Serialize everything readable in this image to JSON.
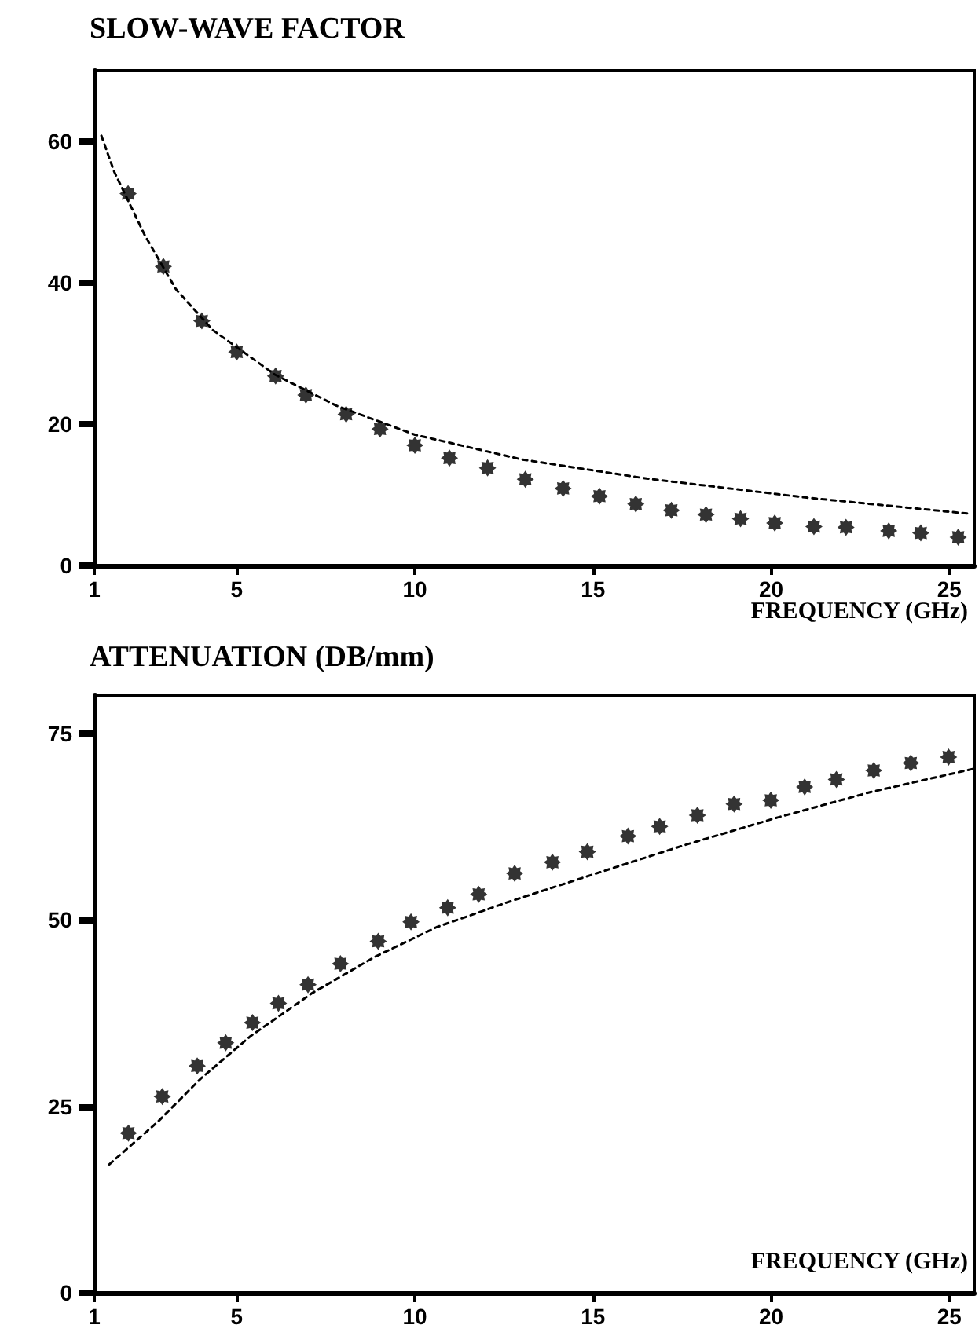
{
  "chart_data": [
    {
      "type": "scatter",
      "title": "SLOW-WAVE FACTOR",
      "xlabel": "FREQUENCY (GHz)",
      "xlim": [
        1,
        25.7
      ],
      "xticks": [
        1,
        5,
        10,
        15,
        20,
        25
      ],
      "ylim": [
        0,
        70
      ],
      "yticks": [
        0,
        20,
        40,
        60
      ],
      "grid": false,
      "series": [
        {
          "color": "#000000",
          "marker": "star",
          "x": [
            1.95,
            2.94,
            4.02,
            5.0,
            6.09,
            6.94,
            8.07,
            9.02,
            10.0,
            10.97,
            12.04,
            13.1,
            14.16,
            15.18,
            16.2,
            17.2,
            18.17,
            19.14,
            20.1,
            21.2,
            22.1,
            23.3,
            24.2,
            25.25
          ],
          "values": [
            52.6,
            42.3,
            34.6,
            30.2,
            26.8,
            24.1,
            21.4,
            19.3,
            17.0,
            15.2,
            13.8,
            12.2,
            10.9,
            9.8,
            8.7,
            7.8,
            7.2,
            6.6,
            6.0,
            5.5,
            5.4,
            4.9,
            4.6,
            4.0
          ]
        },
        {
          "type": "line",
          "color": "#000000",
          "line_style": "dashed",
          "x": [
            1.2,
            1.56,
            2.42,
            3.29,
            4.33,
            6.07,
            7.8,
            10.0,
            13.0,
            16.5,
            21.0,
            25.6
          ],
          "values": [
            60.8,
            55.7,
            46.7,
            39.1,
            33.3,
            27.0,
            22.6,
            18.5,
            15.0,
            12.3,
            9.6,
            7.3
          ]
        }
      ]
    },
    {
      "type": "scatter",
      "title": "ATTENUATION (DB/mm)",
      "xlabel": "FREQUENCY (GHz)",
      "xlim": [
        1,
        25.7
      ],
      "xticks": [
        1,
        5,
        10,
        15,
        20,
        25
      ],
      "ylim": [
        0,
        80
      ],
      "yticks": [
        0,
        25,
        50,
        75
      ],
      "grid": false,
      "series": [
        {
          "color": "#000000",
          "marker": "star",
          "x": [
            1.96,
            2.91,
            3.89,
            4.69,
            5.44,
            6.17,
            7.0,
            7.91,
            8.97,
            9.89,
            10.92,
            11.79,
            12.8,
            13.86,
            14.84,
            15.98,
            16.87,
            17.93,
            18.96,
            19.99,
            20.94,
            21.83,
            22.88,
            23.92,
            24.98
          ],
          "values": [
            21.4,
            26.3,
            30.4,
            33.5,
            36.2,
            38.8,
            41.3,
            44.1,
            47.1,
            49.7,
            51.6,
            53.4,
            56.2,
            57.7,
            59.1,
            61.2,
            62.5,
            64.0,
            65.5,
            66.0,
            67.8,
            68.8,
            70.0,
            71.0,
            71.8
          ]
        },
        {
          "type": "line",
          "color": "#000000",
          "line_style": "dashed",
          "x": [
            1.42,
            2.78,
            3.99,
            5.39,
            7.13,
            8.87,
            10.61,
            12.7,
            14.96,
            17.57,
            20.18,
            22.79,
            25.66
          ],
          "values": [
            17.2,
            22.9,
            28.7,
            34.4,
            40.2,
            45.0,
            49.0,
            52.5,
            56.0,
            60.0,
            63.7,
            67.1,
            70.2
          ]
        }
      ]
    }
  ]
}
